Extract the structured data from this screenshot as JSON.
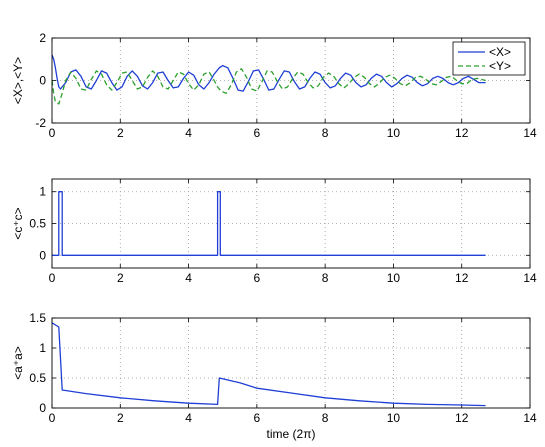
{
  "colors": {
    "blue": "#1f3fd6",
    "green": "#2ca02c",
    "axis": "#000000",
    "grid": "#9a9a9a"
  },
  "chart_data": [
    {
      "type": "line",
      "ylabel": "<X>,<Y>",
      "xlabel": "",
      "xlim": [
        0,
        14
      ],
      "ylim": [
        -2,
        2
      ],
      "xticks": [
        "0",
        "2",
        "4",
        "6",
        "8",
        "10",
        "12",
        "14"
      ],
      "yticks": [
        "-2",
        "0",
        "2"
      ],
      "grid": true,
      "legend": {
        "position": "top-right",
        "entries": [
          "<X>",
          "<Y>"
        ]
      },
      "series": [
        {
          "name": "<X>",
          "style": "solid",
          "color": "blue",
          "x": [
            0,
            0.05,
            0.1,
            0.15,
            0.2,
            0.25,
            0.3,
            0.4,
            0.55,
            0.7,
            0.85,
            1.0,
            1.15,
            1.3,
            1.45,
            1.6,
            1.75,
            1.9,
            2.05,
            2.2,
            2.35,
            2.5,
            2.65,
            2.8,
            2.95,
            3.1,
            3.25,
            3.4,
            3.55,
            3.7,
            3.85,
            4.0,
            4.15,
            4.3,
            4.45,
            4.6,
            4.75,
            4.85,
            4.9,
            5.0,
            5.15,
            5.3,
            5.45,
            5.6,
            5.75,
            5.9,
            6.05,
            6.2,
            6.35,
            6.5,
            6.65,
            6.8,
            6.95,
            7.1,
            7.25,
            7.4,
            7.55,
            7.7,
            7.85,
            8.0,
            8.15,
            8.3,
            8.45,
            8.6,
            8.75,
            8.9,
            9.05,
            9.2,
            9.35,
            9.5,
            9.65,
            9.8,
            9.95,
            10.1,
            10.25,
            10.4,
            10.55,
            10.7,
            10.85,
            11.0,
            11.15,
            11.3,
            11.45,
            11.6,
            11.75,
            11.9,
            12.05,
            12.2,
            12.35,
            12.5,
            12.7
          ],
          "y": [
            1.2,
            1.0,
            0.6,
            0.1,
            -0.3,
            -0.4,
            -0.3,
            -0.1,
            0.4,
            0.5,
            0.2,
            -0.3,
            -0.4,
            0.0,
            0.45,
            0.35,
            -0.1,
            -0.45,
            -0.3,
            0.2,
            0.45,
            0.2,
            -0.25,
            -0.4,
            -0.1,
            0.35,
            0.4,
            0.0,
            -0.35,
            -0.3,
            0.1,
            0.4,
            0.25,
            -0.2,
            -0.4,
            -0.1,
            0.3,
            0.5,
            0.6,
            0.7,
            0.6,
            0.1,
            -0.45,
            -0.5,
            -0.05,
            0.45,
            0.5,
            0.05,
            -0.45,
            -0.4,
            0.05,
            0.45,
            0.4,
            -0.05,
            -0.4,
            -0.3,
            0.1,
            0.4,
            0.3,
            -0.1,
            -0.35,
            -0.25,
            0.1,
            0.35,
            0.25,
            -0.1,
            -0.3,
            -0.2,
            0.1,
            0.3,
            0.2,
            -0.1,
            -0.3,
            -0.15,
            0.1,
            0.25,
            0.15,
            -0.1,
            -0.25,
            -0.15,
            0.1,
            0.2,
            0.1,
            -0.1,
            -0.2,
            -0.1,
            0.1,
            0.2,
            0.05,
            -0.1,
            -0.1
          ]
        },
        {
          "name": "<Y>",
          "style": "dashed",
          "color": "green",
          "x": [
            0,
            0.05,
            0.1,
            0.2,
            0.3,
            0.4,
            0.55,
            0.7,
            0.85,
            1.0,
            1.15,
            1.3,
            1.45,
            1.6,
            1.75,
            1.9,
            2.05,
            2.2,
            2.35,
            2.5,
            2.65,
            2.8,
            2.95,
            3.1,
            3.25,
            3.4,
            3.55,
            3.7,
            3.85,
            4.0,
            4.15,
            4.3,
            4.45,
            4.6,
            4.75,
            4.85,
            4.95,
            5.1,
            5.25,
            5.4,
            5.55,
            5.7,
            5.85,
            6.0,
            6.15,
            6.3,
            6.45,
            6.6,
            6.75,
            6.9,
            7.05,
            7.2,
            7.35,
            7.5,
            7.65,
            7.8,
            7.95,
            8.1,
            8.25,
            8.4,
            8.55,
            8.7,
            8.85,
            9.0,
            9.15,
            9.3,
            9.45,
            9.6,
            9.75,
            9.9,
            10.05,
            10.2,
            10.35,
            10.5,
            10.65,
            10.8,
            10.95,
            11.1,
            11.25,
            11.4,
            11.55,
            11.7,
            11.85,
            12.0,
            12.15,
            12.3,
            12.45,
            12.7
          ],
          "y": [
            0.0,
            -0.6,
            -1.0,
            -1.1,
            -0.6,
            0.0,
            0.4,
            0.1,
            -0.4,
            -0.45,
            0.05,
            0.45,
            0.3,
            -0.2,
            -0.45,
            -0.1,
            0.35,
            0.4,
            0.0,
            -0.4,
            -0.3,
            0.15,
            0.45,
            0.2,
            -0.3,
            -0.4,
            0.0,
            0.4,
            0.3,
            -0.15,
            -0.45,
            -0.2,
            0.3,
            0.4,
            0.0,
            -0.3,
            -0.5,
            -0.6,
            -0.2,
            0.4,
            0.55,
            0.15,
            -0.4,
            -0.5,
            -0.05,
            0.45,
            0.4,
            -0.05,
            -0.4,
            -0.3,
            0.1,
            0.4,
            0.3,
            -0.1,
            -0.35,
            -0.25,
            0.15,
            0.35,
            0.2,
            -0.15,
            -0.35,
            -0.15,
            0.15,
            0.3,
            0.15,
            -0.15,
            -0.3,
            -0.1,
            0.15,
            0.25,
            0.1,
            -0.15,
            -0.25,
            -0.1,
            0.15,
            0.2,
            0.05,
            -0.15,
            -0.2,
            -0.05,
            0.15,
            0.2,
            0.0,
            -0.15,
            -0.15,
            0.05,
            0.1,
            0.0
          ]
        }
      ]
    },
    {
      "type": "line",
      "ylabel": "<c⁺c>",
      "xlabel": "",
      "xlim": [
        0,
        14
      ],
      "ylim": [
        -0.2,
        1.2
      ],
      "xticks": [
        "0",
        "2",
        "4",
        "6",
        "8",
        "10",
        "12",
        "14"
      ],
      "yticks": [
        "0",
        "0.5",
        "1"
      ],
      "grid": true,
      "series": [
        {
          "style": "solid",
          "color": "blue",
          "x": [
            0,
            0.2,
            0.2,
            0.3,
            0.3,
            4.85,
            4.85,
            4.93,
            4.93,
            12.7
          ],
          "y": [
            0,
            0,
            1,
            1,
            0,
            0,
            1,
            1,
            0,
            0
          ]
        }
      ]
    },
    {
      "type": "line",
      "ylabel": "<a⁺a>",
      "xlabel": "time (2π)",
      "xlim": [
        0,
        14
      ],
      "ylim": [
        0,
        1.5
      ],
      "xticks": [
        "0",
        "2",
        "4",
        "6",
        "8",
        "10",
        "12",
        "14"
      ],
      "yticks": [
        "0",
        "0.5",
        "1",
        "1.5"
      ],
      "grid": true,
      "series": [
        {
          "style": "solid",
          "color": "blue",
          "x": [
            0,
            0.2,
            0.3,
            1.0,
            2.0,
            3.0,
            4.0,
            4.85,
            4.9,
            5.5,
            6.0,
            7.0,
            8.0,
            9.0,
            10.0,
            11.0,
            12.0,
            12.7
          ],
          "y": [
            1.42,
            1.35,
            0.3,
            0.24,
            0.17,
            0.12,
            0.08,
            0.06,
            0.5,
            0.42,
            0.33,
            0.25,
            0.17,
            0.12,
            0.08,
            0.06,
            0.05,
            0.04
          ]
        }
      ]
    }
  ]
}
